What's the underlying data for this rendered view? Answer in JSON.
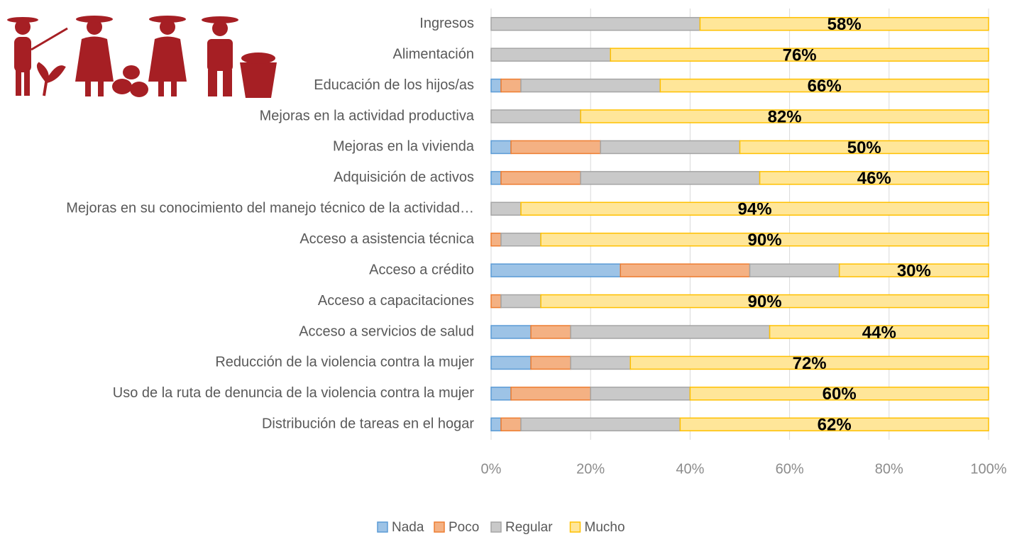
{
  "chart_data": {
    "type": "stacked-barh",
    "categories": [
      "Ingresos",
      "Alimentación",
      "Educación de los hijos/as",
      "Mejoras en la actividad productiva",
      "Mejoras en la vivienda",
      "Adquisición de activos",
      "Mejoras en su conocimiento del manejo técnico de la actividad…",
      "Acceso a asistencia técnica",
      "Acceso a crédito",
      "Acceso a capacitaciones",
      "Acceso a servicios de salud",
      "Reducción de la violencia contra la mujer",
      "Uso de la ruta de denuncia de la violencia contra la mujer",
      "Distribución de tareas en el hogar"
    ],
    "series": [
      {
        "name": "Nada",
        "color": "#9dc3e6",
        "edgecolor": "#5b9bd5",
        "values": [
          0,
          0,
          2,
          0,
          4,
          2,
          0,
          0,
          26,
          0,
          8,
          8,
          4,
          2
        ]
      },
      {
        "name": "Poco",
        "color": "#f4b183",
        "edgecolor": "#ed7d31",
        "values": [
          0,
          0,
          4,
          0,
          18,
          16,
          0,
          2,
          26,
          2,
          8,
          8,
          16,
          4
        ]
      },
      {
        "name": "Regular",
        "color": "#c9c9c9",
        "edgecolor": "#a5a5a5",
        "values": [
          42,
          24,
          28,
          18,
          28,
          36,
          6,
          8,
          18,
          8,
          40,
          12,
          20,
          32
        ]
      },
      {
        "name": "Mucho",
        "color": "#ffe699",
        "edgecolor": "#ffc000",
        "values": [
          58,
          76,
          66,
          82,
          50,
          46,
          94,
          90,
          30,
          90,
          44,
          72,
          60,
          62
        ],
        "value_labels": [
          "58%",
          "76%",
          "66%",
          "82%",
          "50%",
          "46%",
          "94%",
          "90%",
          "30%",
          "90%",
          "44%",
          "72%",
          "60%",
          "62%"
        ]
      }
    ],
    "xlim": [
      0,
      100
    ],
    "xticks": [
      {
        "value": 0,
        "label": "0%"
      },
      {
        "value": 20,
        "label": "20%"
      },
      {
        "value": 40,
        "label": "40%"
      },
      {
        "value": 60,
        "label": "60%"
      },
      {
        "value": 80,
        "label": "80%"
      },
      {
        "value": 100,
        "label": "100%"
      }
    ],
    "grid": true,
    "legend": "bottom"
  }
}
